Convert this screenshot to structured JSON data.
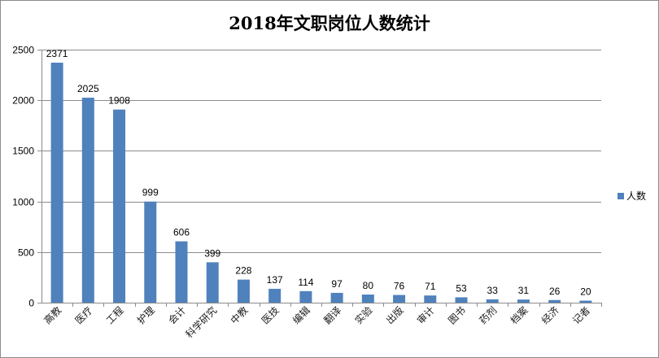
{
  "chart_data": {
    "type": "bar",
    "title": "2018年文职岗位人数统计",
    "categories": [
      "高教",
      "医疗",
      "工程",
      "护理",
      "会计",
      "科学研究",
      "中教",
      "医技",
      "编辑",
      "翻译",
      "实验",
      "出版",
      "审计",
      "图书",
      "药剂",
      "档案",
      "经济",
      "记者"
    ],
    "series": [
      {
        "name": "人数",
        "values": [
          2371,
          2025,
          1908,
          999,
          606,
          399,
          228,
          137,
          114,
          97,
          80,
          76,
          71,
          53,
          33,
          31,
          26,
          20
        ],
        "color": "#4f81bd"
      }
    ],
    "ylim": [
      0,
      2500
    ],
    "yticks": [
      0,
      500,
      1000,
      1500,
      2000,
      2500
    ],
    "grid": true,
    "legend_position": "right",
    "xlabel": "",
    "ylabel": ""
  }
}
